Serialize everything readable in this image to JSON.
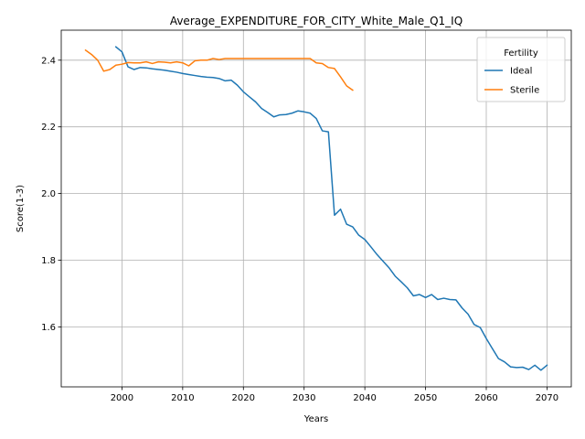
{
  "chart_data": {
    "type": "line",
    "title": "Average_EXPENDITURE_FOR_CITY_White_Male_Q1_IQ",
    "xlabel": "Years",
    "ylabel": "Score(1-3)",
    "xlim": [
      1990,
      2074
    ],
    "ylim": [
      1.42,
      2.49
    ],
    "xticks": [
      2000,
      2010,
      2020,
      2030,
      2040,
      2050,
      2060,
      2070
    ],
    "xtick_labels": [
      "2000",
      "2010",
      "2020",
      "2030",
      "2040",
      "2050",
      "2060",
      "2070"
    ],
    "yticks": [
      1.6,
      1.8,
      2.0,
      2.2,
      2.4
    ],
    "ytick_labels": [
      "1.6",
      "1.8",
      "2.0",
      "2.2",
      "2.4"
    ],
    "grid": true,
    "legend": {
      "title": "Fertility",
      "placement": "top-right"
    },
    "series": [
      {
        "name": "Ideal",
        "color": "#1f77b4",
        "points": [
          [
            1999,
            2.44
          ],
          [
            2000,
            2.425
          ],
          [
            2001,
            2.38
          ],
          [
            2002,
            2.372
          ],
          [
            2003,
            2.378
          ],
          [
            2004,
            2.377
          ],
          [
            2005,
            2.374
          ],
          [
            2006,
            2.372
          ],
          [
            2007,
            2.37
          ],
          [
            2008,
            2.367
          ],
          [
            2009,
            2.364
          ],
          [
            2010,
            2.36
          ],
          [
            2011,
            2.357
          ],
          [
            2012,
            2.354
          ],
          [
            2013,
            2.351
          ],
          [
            2014,
            2.349
          ],
          [
            2015,
            2.348
          ],
          [
            2016,
            2.345
          ],
          [
            2017,
            2.338
          ],
          [
            2018,
            2.34
          ],
          [
            2019,
            2.325
          ],
          [
            2020,
            2.305
          ],
          [
            2021,
            2.29
          ],
          [
            2022,
            2.275
          ],
          [
            2023,
            2.255
          ],
          [
            2024,
            2.243
          ],
          [
            2025,
            2.23
          ],
          [
            2026,
            2.236
          ],
          [
            2027,
            2.237
          ],
          [
            2028,
            2.241
          ],
          [
            2029,
            2.248
          ],
          [
            2030,
            2.245
          ],
          [
            2031,
            2.241
          ],
          [
            2032,
            2.225
          ],
          [
            2033,
            2.188
          ],
          [
            2034,
            2.185
          ],
          [
            2035,
            1.935
          ],
          [
            2036,
            1.953
          ],
          [
            2037,
            1.908
          ],
          [
            2038,
            1.9
          ],
          [
            2039,
            1.875
          ],
          [
            2040,
            1.862
          ],
          [
            2041,
            1.84
          ],
          [
            2042,
            1.817
          ],
          [
            2043,
            1.797
          ],
          [
            2044,
            1.777
          ],
          [
            2045,
            1.752
          ],
          [
            2046,
            1.735
          ],
          [
            2047,
            1.717
          ],
          [
            2048,
            1.693
          ],
          [
            2049,
            1.697
          ],
          [
            2050,
            1.688
          ],
          [
            2051,
            1.697
          ],
          [
            2052,
            1.682
          ],
          [
            2053,
            1.686
          ],
          [
            2054,
            1.682
          ],
          [
            2055,
            1.681
          ],
          [
            2056,
            1.657
          ],
          [
            2057,
            1.638
          ],
          [
            2058,
            1.607
          ],
          [
            2059,
            1.598
          ],
          [
            2060,
            1.565
          ],
          [
            2061,
            1.535
          ],
          [
            2062,
            1.505
          ],
          [
            2063,
            1.495
          ],
          [
            2064,
            1.48
          ],
          [
            2065,
            1.478
          ],
          [
            2066,
            1.479
          ],
          [
            2067,
            1.472
          ],
          [
            2068,
            1.485
          ],
          [
            2069,
            1.47
          ],
          [
            2070,
            1.485
          ]
        ]
      },
      {
        "name": "Sterile",
        "color": "#ff7f0e",
        "points": [
          [
            1994,
            2.43
          ],
          [
            1995,
            2.417
          ],
          [
            1996,
            2.4
          ],
          [
            1997,
            2.367
          ],
          [
            1998,
            2.372
          ],
          [
            1999,
            2.385
          ],
          [
            2000,
            2.388
          ],
          [
            2001,
            2.393
          ],
          [
            2002,
            2.392
          ],
          [
            2003,
            2.392
          ],
          [
            2004,
            2.395
          ],
          [
            2005,
            2.39
          ],
          [
            2006,
            2.395
          ],
          [
            2007,
            2.394
          ],
          [
            2008,
            2.392
          ],
          [
            2009,
            2.395
          ],
          [
            2010,
            2.392
          ],
          [
            2011,
            2.383
          ],
          [
            2012,
            2.398
          ],
          [
            2013,
            2.4
          ],
          [
            2014,
            2.4
          ],
          [
            2015,
            2.405
          ],
          [
            2016,
            2.402
          ],
          [
            2017,
            2.405
          ],
          [
            2018,
            2.405
          ],
          [
            2019,
            2.405
          ],
          [
            2020,
            2.405
          ],
          [
            2021,
            2.405
          ],
          [
            2022,
            2.405
          ],
          [
            2023,
            2.405
          ],
          [
            2024,
            2.405
          ],
          [
            2025,
            2.405
          ],
          [
            2026,
            2.405
          ],
          [
            2027,
            2.405
          ],
          [
            2028,
            2.405
          ],
          [
            2029,
            2.405
          ],
          [
            2030,
            2.405
          ],
          [
            2031,
            2.405
          ],
          [
            2032,
            2.392
          ],
          [
            2033,
            2.39
          ],
          [
            2034,
            2.378
          ],
          [
            2035,
            2.375
          ],
          [
            2036,
            2.35
          ],
          [
            2037,
            2.323
          ],
          [
            2038,
            2.31
          ]
        ]
      }
    ]
  }
}
